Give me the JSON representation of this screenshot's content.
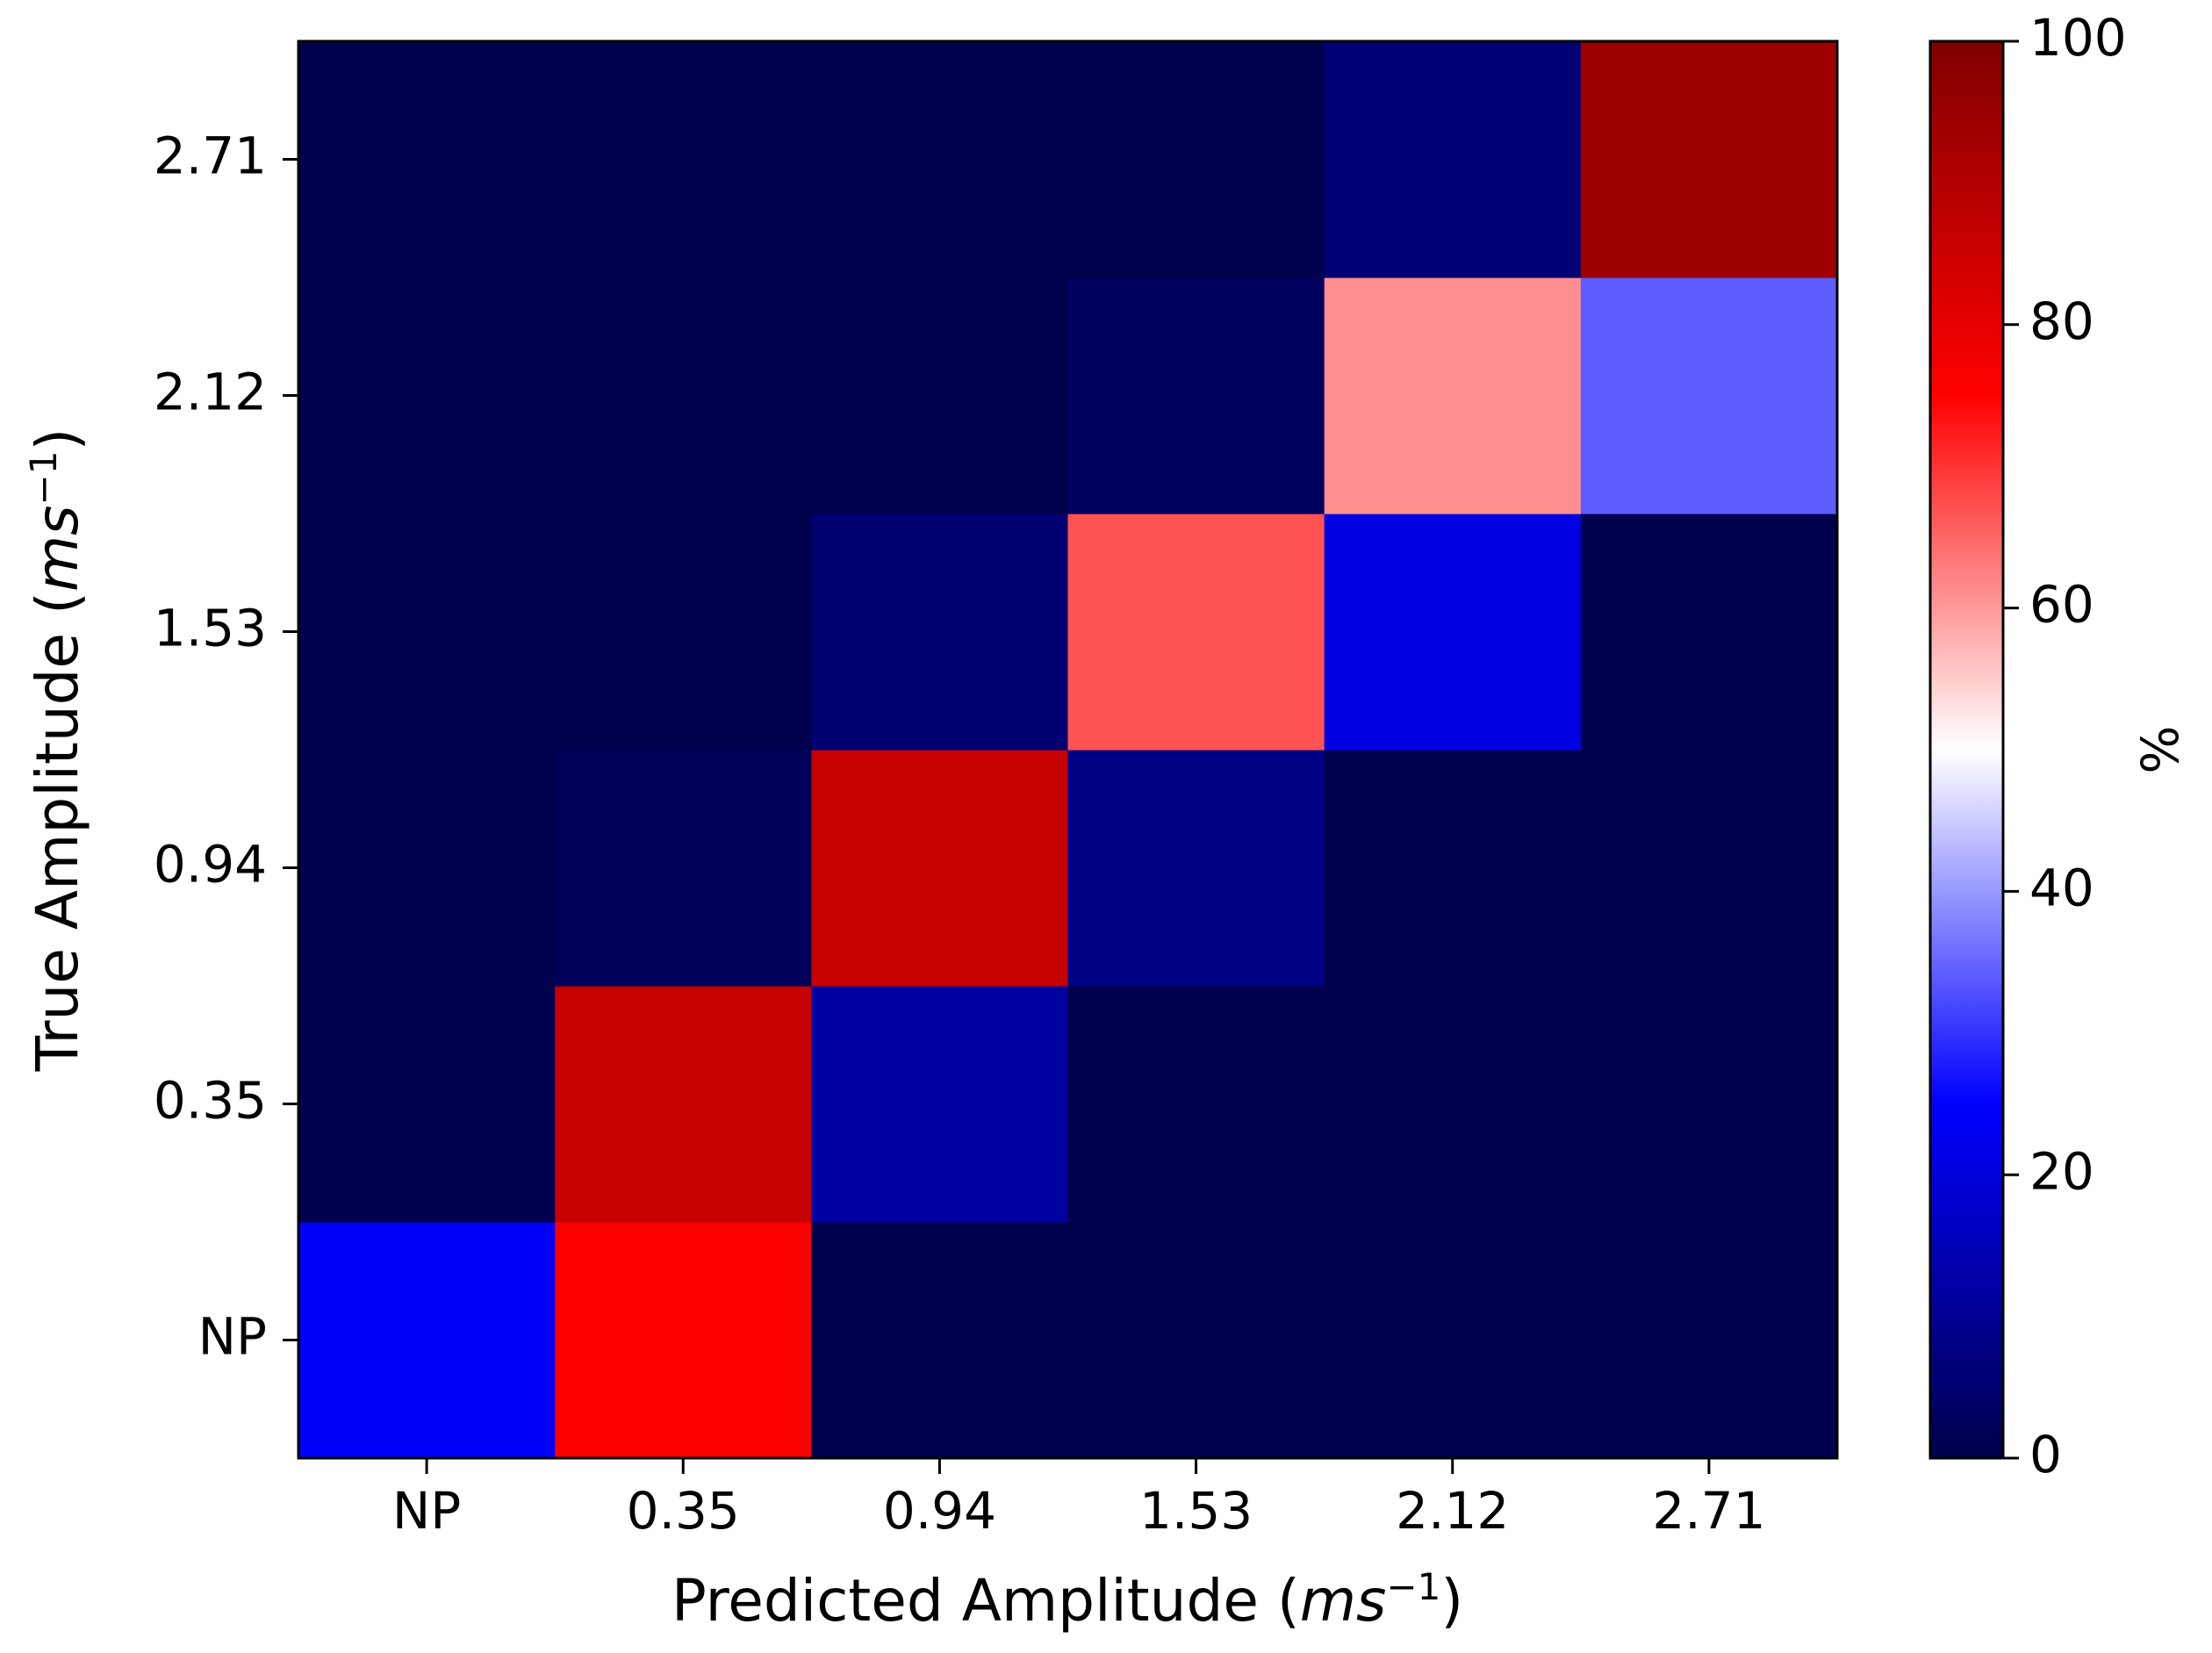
{
  "chart_data": {
    "type": "heatmap",
    "xlabel_main": "Predicted Amplitude (",
    "xlabel_unit": "ms",
    "xlabel_exp": "−1",
    "xlabel_end": ")",
    "ylabel_main": "True Amplitude (",
    "ylabel_unit": "ms",
    "ylabel_exp": "−1",
    "ylabel_end": ")",
    "x_categories": [
      "NP",
      "0.35",
      "0.94",
      "1.53",
      "2.12",
      "2.71"
    ],
    "y_categories": [
      "NP",
      "0.35",
      "0.94",
      "1.53",
      "2.12",
      "2.71"
    ],
    "values": [
      [
        24,
        76,
        0,
        0,
        0,
        0
      ],
      [
        0,
        86,
        12,
        0,
        0,
        0
      ],
      [
        0,
        2,
        86,
        8,
        0,
        0
      ],
      [
        0,
        0,
        5,
        67,
        21,
        0
      ],
      [
        0,
        0,
        0,
        3,
        61,
        34
      ],
      [
        0,
        0,
        0,
        0,
        6,
        94
      ]
    ],
    "colorbar": {
      "label": "%",
      "range": [
        0,
        100
      ],
      "ticks": [
        "0",
        "20",
        "40",
        "60",
        "80",
        "100"
      ],
      "colormap": "seismic",
      "stops": [
        "#00004c",
        "#0000ff",
        "#ffffff",
        "#ff0000",
        "#800000"
      ]
    },
    "grid": false
  }
}
